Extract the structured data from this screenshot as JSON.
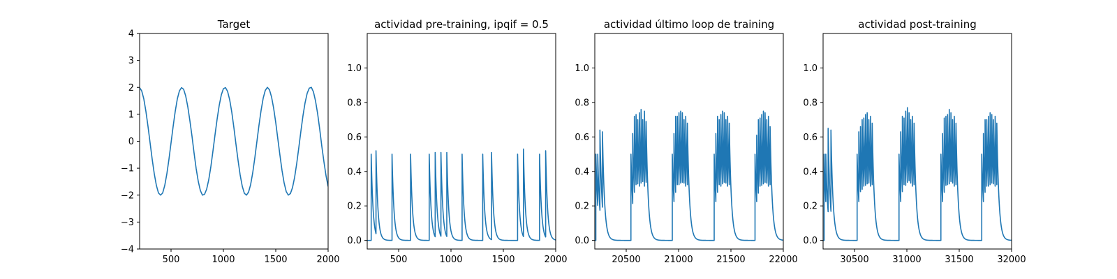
{
  "colors": {
    "series": "#1f77b4",
    "axes": "#000000",
    "background": "#ffffff"
  },
  "chart_data": [
    {
      "type": "line",
      "title": "Target",
      "xlabel": "",
      "ylabel": "",
      "xlim": [
        200,
        2000
      ],
      "ylim": [
        -4,
        4
      ],
      "xticks": [
        500,
        1000,
        1500,
        2000
      ],
      "xtick_labels": [
        "500",
        "1000",
        "1500",
        "2000"
      ],
      "yticks": [
        -4,
        -3,
        -2,
        -1,
        0,
        1,
        2,
        3,
        4
      ],
      "ytick_labels": [
        "−4",
        "−3",
        "−2",
        "−1",
        "0",
        "1",
        "2",
        "3",
        "4"
      ],
      "series": [
        {
          "name": "target",
          "x": [
            200,
            220,
            240,
            260,
            280,
            300,
            320,
            340,
            360,
            380,
            400,
            420,
            440,
            460,
            480,
            500,
            520,
            540,
            560,
            580,
            600,
            620,
            640,
            660,
            680,
            700,
            720,
            740,
            760,
            780,
            800,
            820,
            840,
            860,
            880,
            900,
            920,
            940,
            960,
            980,
            1000,
            1020,
            1040,
            1060,
            1080,
            1100,
            1120,
            1140,
            1160,
            1180,
            1200,
            1220,
            1240,
            1260,
            1280,
            1300,
            1320,
            1340,
            1360,
            1380,
            1400,
            1420,
            1440,
            1460,
            1480,
            1500,
            1520,
            1540,
            1560,
            1580,
            1600,
            1620,
            1640,
            1660,
            1680,
            1700,
            1720,
            1740,
            1760,
            1780,
            1800,
            1820,
            1840,
            1860,
            1880,
            1900,
            1920,
            1940,
            1960,
            1980,
            2000
          ],
          "values": [
            1.99,
            1.87,
            1.57,
            1.11,
            0.55,
            -0.06,
            -0.67,
            -1.21,
            -1.64,
            -1.92,
            -2.0,
            -1.92,
            -1.64,
            -1.21,
            -0.67,
            -0.06,
            0.55,
            1.11,
            1.57,
            1.87,
            1.99,
            1.93,
            1.68,
            1.28,
            0.76,
            0.19,
            -0.44,
            -1.02,
            -1.49,
            -1.83,
            -2.0,
            -1.97,
            -1.78,
            -1.43,
            -0.95,
            -0.37,
            0.24,
            0.82,
            1.33,
            1.72,
            1.95,
            1.99,
            1.85,
            1.54,
            1.08,
            0.51,
            -0.11,
            -0.71,
            -1.25,
            -1.67,
            -1.93,
            -2.0,
            -1.89,
            -1.61,
            -1.17,
            -0.62,
            -0.01,
            0.6,
            1.15,
            1.6,
            1.89,
            2.0,
            1.91,
            1.64,
            1.22,
            0.69,
            0.08,
            -0.52,
            -1.09,
            -1.55,
            -1.87,
            -2.0,
            -1.94,
            -1.72,
            -1.34,
            -0.83,
            -0.24,
            0.37,
            0.95,
            1.43,
            1.78,
            1.97,
            2.0,
            1.83,
            1.49,
            1.02,
            0.44,
            -0.19,
            -0.76,
            -1.28,
            -1.68
          ]
        }
      ]
    },
    {
      "type": "line",
      "title": "actividad pre-training, ipqif = 0.5",
      "xlabel": "",
      "ylabel": "",
      "xlim": [
        200,
        2000
      ],
      "ylim": [
        -0.05,
        1.2
      ],
      "xticks": [
        500,
        1000,
        1500,
        2000
      ],
      "xtick_labels": [
        "500",
        "1000",
        "1500",
        "2000"
      ],
      "yticks": [
        0,
        0.2,
        0.4,
        0.6,
        0.8,
        1.0
      ],
      "ytick_labels": [
        "0.0",
        "0.2",
        "0.4",
        "0.6",
        "0.8",
        "1.0"
      ],
      "series": [
        {
          "name": "activity",
          "baseline": 0.0,
          "decay_tau": 18,
          "spike_times": [
            238,
            284,
            437,
            614,
            792,
            849,
            904,
            960,
            1106,
            1303,
            1387,
            1636,
            1692,
            1846,
            1904
          ],
          "spike_peaks": [
            0.5,
            0.52,
            0.5,
            0.5,
            0.5,
            0.51,
            0.51,
            0.51,
            0.5,
            0.5,
            0.51,
            0.5,
            0.53,
            0.5,
            0.52
          ]
        }
      ]
    },
    {
      "type": "line",
      "title": "actividad último loop de training",
      "xlabel": "",
      "ylabel": "",
      "xlim": [
        20200,
        22000
      ],
      "ylim": [
        -0.05,
        1.2
      ],
      "xticks": [
        20500,
        21000,
        21500,
        22000
      ],
      "xtick_labels": [
        "20500",
        "21000",
        "21500",
        "22000"
      ],
      "yticks": [
        0,
        0.2,
        0.4,
        0.6,
        0.8,
        1.0
      ],
      "ytick_labels": [
        "0.0",
        "0.2",
        "0.4",
        "0.6",
        "0.8",
        "1.0"
      ],
      "series": [
        {
          "name": "activity",
          "baseline": 0.0,
          "decay_tau": 20,
          "spike_times": [
            20210,
            20228,
            20249,
            20273,
            20545,
            20562,
            20578,
            20594,
            20610,
            20626,
            20642,
            20658,
            20674,
            20690,
            20940,
            20956,
            20972,
            20988,
            21004,
            21020,
            21036,
            21052,
            21068,
            21084,
            21340,
            21356,
            21372,
            21388,
            21404,
            21420,
            21436,
            21452,
            21468,
            21484,
            21730,
            21746,
            21762,
            21778,
            21794,
            21810,
            21826,
            21842,
            21858,
            21874
          ],
          "spike_peaks": [
            0.5,
            0.5,
            0.64,
            0.63,
            0.5,
            0.62,
            0.72,
            0.73,
            0.7,
            0.74,
            0.76,
            0.7,
            0.75,
            0.69,
            0.5,
            0.62,
            0.72,
            0.72,
            0.74,
            0.75,
            0.74,
            0.7,
            0.72,
            0.68,
            0.5,
            0.62,
            0.72,
            0.7,
            0.73,
            0.75,
            0.74,
            0.7,
            0.72,
            0.68,
            0.5,
            0.61,
            0.7,
            0.71,
            0.73,
            0.75,
            0.74,
            0.7,
            0.72,
            0.66
          ]
        }
      ]
    },
    {
      "type": "line",
      "title": "actividad post-training",
      "xlabel": "",
      "ylabel": "",
      "xlim": [
        30200,
        32000
      ],
      "ylim": [
        -0.05,
        1.2
      ],
      "xticks": [
        30500,
        31000,
        31500,
        32000
      ],
      "xtick_labels": [
        "30500",
        "31000",
        "31500",
        "32000"
      ],
      "yticks": [
        0,
        0.2,
        0.4,
        0.6,
        0.8,
        1.0
      ],
      "ytick_labels": [
        "0.0",
        "0.2",
        "0.4",
        "0.6",
        "0.8",
        "1.0"
      ],
      "series": [
        {
          "name": "activity",
          "baseline": 0.0,
          "decay_tau": 20,
          "spike_times": [
            30210,
            30226,
            30248,
            30275,
            30525,
            30541,
            30557,
            30573,
            30589,
            30605,
            30621,
            30637,
            30653,
            30669,
            30925,
            30941,
            30957,
            30973,
            30989,
            31005,
            31021,
            31037,
            31053,
            31069,
            31325,
            31341,
            31357,
            31373,
            31389,
            31405,
            31421,
            31437,
            31453,
            31469,
            31715,
            31731,
            31747,
            31763,
            31779,
            31795,
            31811,
            31827,
            31843,
            31859
          ],
          "spike_peaks": [
            0.5,
            0.5,
            0.65,
            0.64,
            0.5,
            0.63,
            0.66,
            0.7,
            0.71,
            0.73,
            0.74,
            0.7,
            0.72,
            0.68,
            0.5,
            0.63,
            0.72,
            0.71,
            0.75,
            0.77,
            0.74,
            0.7,
            0.72,
            0.68,
            0.5,
            0.62,
            0.71,
            0.72,
            0.73,
            0.76,
            0.74,
            0.7,
            0.72,
            0.68,
            0.5,
            0.62,
            0.7,
            0.7,
            0.72,
            0.74,
            0.73,
            0.7,
            0.72,
            0.68
          ]
        }
      ]
    }
  ]
}
